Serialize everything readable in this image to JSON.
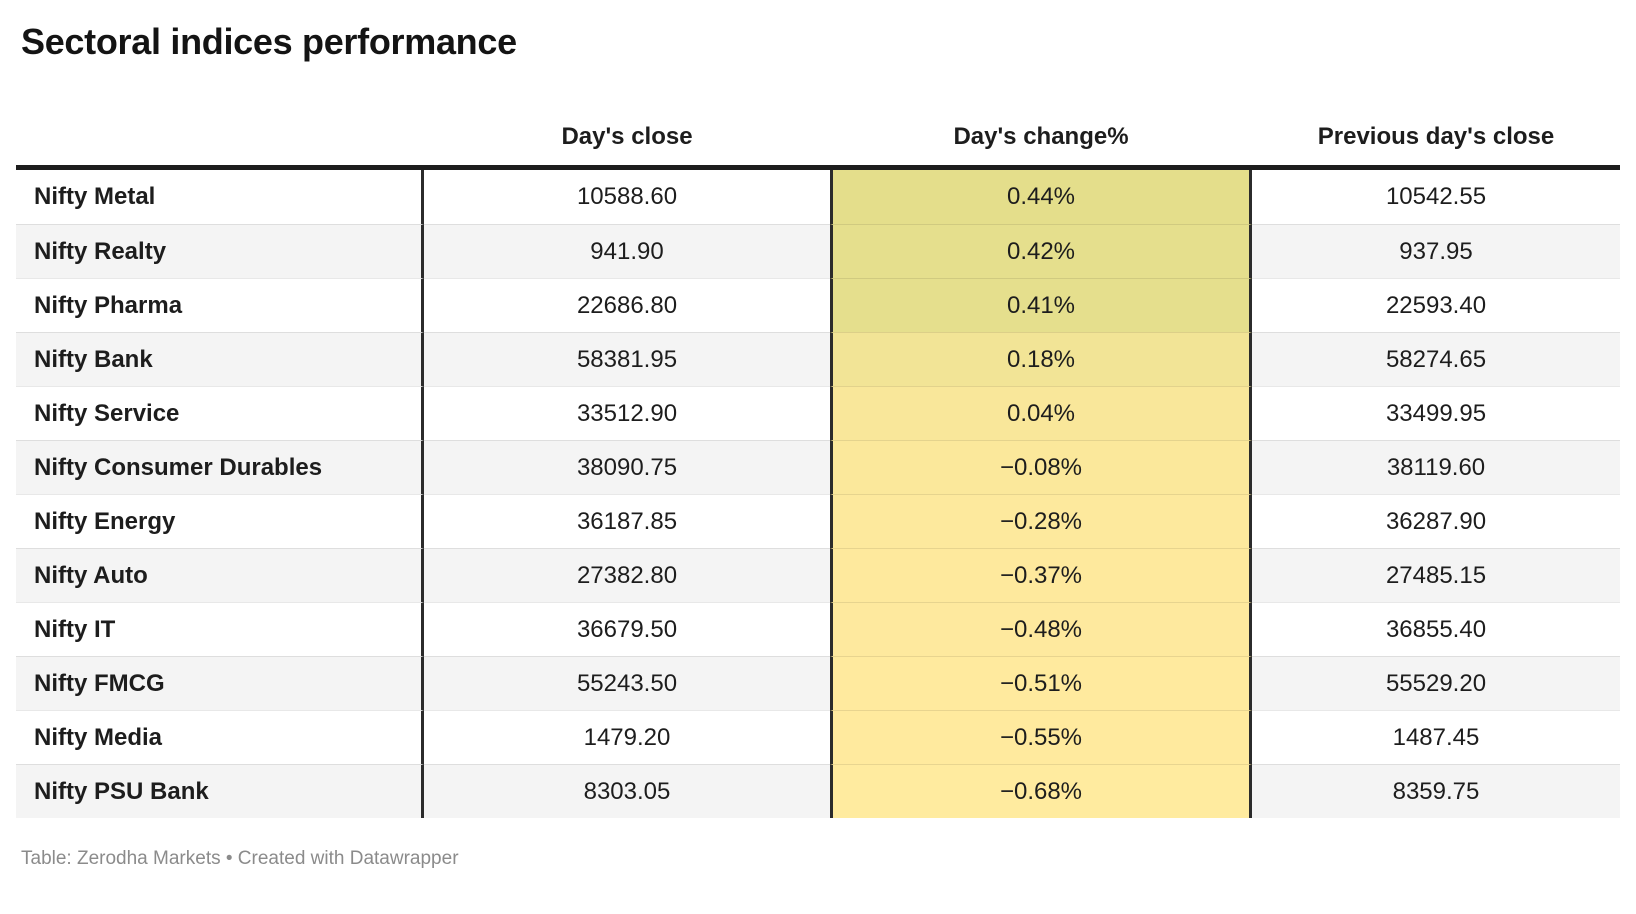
{
  "title": "Sectoral indices performance",
  "footer": "Table: Zerodha Markets • Created with Datawrapper",
  "colors": {
    "page_bg": "#ffffff",
    "text": "#1d1d1d",
    "footer_text": "#8b8b8b",
    "row_alt_bg": "#f4f4f4",
    "header_rule": "#1d1d1d",
    "column_divider": "#2b2b2b",
    "heatmap_high": "#e4de8b",
    "heatmap_low": "#ffeb9f"
  },
  "chart_data": {
    "type": "table",
    "columns": [
      "",
      "Day's close",
      "Day's change%",
      "Previous day's close"
    ],
    "heatmap_column": "Day's change%",
    "rows": [
      {
        "label": "Nifty Metal",
        "close": "10588.60",
        "change": "0.44%",
        "prev": "10542.55",
        "change_bg": "#e4de8b"
      },
      {
        "label": "Nifty Realty",
        "close": "941.90",
        "change": "0.42%",
        "prev": "937.95",
        "change_bg": "#e5df8d"
      },
      {
        "label": "Nifty Pharma",
        "close": "22686.80",
        "change": "0.41%",
        "prev": "22593.40",
        "change_bg": "#e5df8d"
      },
      {
        "label": "Nifty Bank",
        "close": "58381.95",
        "change": "0.18%",
        "prev": "58274.65",
        "change_bg": "#f2e496"
      },
      {
        "label": "Nifty Service",
        "close": "33512.90",
        "change": "0.04%",
        "prev": "33499.95",
        "change_bg": "#f9e79a"
      },
      {
        "label": "Nifty Consumer Durables",
        "close": "38090.75",
        "change": "−0.08%",
        "prev": "38119.60",
        "change_bg": "#fbe89b"
      },
      {
        "label": "Nifty Energy",
        "close": "36187.85",
        "change": "−0.28%",
        "prev": "36287.90",
        "change_bg": "#fde99d"
      },
      {
        "label": "Nifty Auto",
        "close": "27382.80",
        "change": "−0.37%",
        "prev": "27485.15",
        "change_bg": "#fee99d"
      },
      {
        "label": "Nifty IT",
        "close": "36679.50",
        "change": "−0.48%",
        "prev": "36855.40",
        "change_bg": "#fee99e"
      },
      {
        "label": "Nifty FMCG",
        "close": "55243.50",
        "change": "−0.51%",
        "prev": "55529.20",
        "change_bg": "#ffea9e"
      },
      {
        "label": "Nifty Media",
        "close": "1479.20",
        "change": "−0.55%",
        "prev": "1487.45",
        "change_bg": "#ffea9e"
      },
      {
        "label": "Nifty PSU Bank",
        "close": "8303.05",
        "change": "−0.68%",
        "prev": "8359.75",
        "change_bg": "#ffeb9f"
      }
    ]
  }
}
